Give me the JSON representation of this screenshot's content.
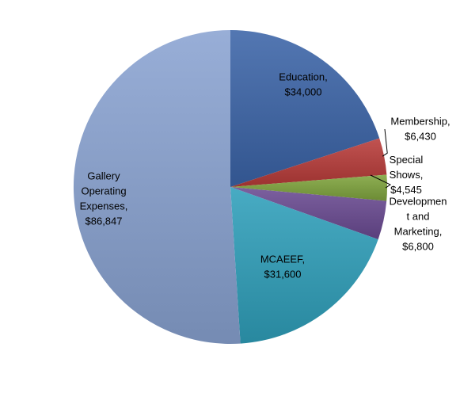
{
  "chart_data": {
    "type": "pie",
    "title": "",
    "slices": [
      {
        "name": "Education",
        "value": 34000,
        "label_lines": [
          "Education,",
          "$34,000"
        ],
        "color": "#3b64a8"
      },
      {
        "name": "Membership",
        "value": 6430,
        "label_lines": [
          "Membership,",
          "$6,430"
        ],
        "color": "#b83b39"
      },
      {
        "name": "Special Shows",
        "value": 4545,
        "label_lines": [
          "Special",
          "Shows,",
          "$4,545"
        ],
        "color": "#7fa43d"
      },
      {
        "name": "Development and Marketing",
        "value": 6800,
        "label_lines": [
          "Developmen",
          "t and",
          "Marketing,",
          "$6,800"
        ],
        "color": "#6a4a92"
      },
      {
        "name": "MCAEEF",
        "value": 31600,
        "label_lines": [
          "MCAEEF,",
          "$31,600"
        ],
        "color": "#2fa0bb"
      },
      {
        "name": "Gallery Operating Expenses",
        "value": 86847,
        "label_lines": [
          "Gallery",
          "Operating",
          "Expenses,",
          "$86,847"
        ],
        "color": "#8aa3d2"
      }
    ]
  }
}
